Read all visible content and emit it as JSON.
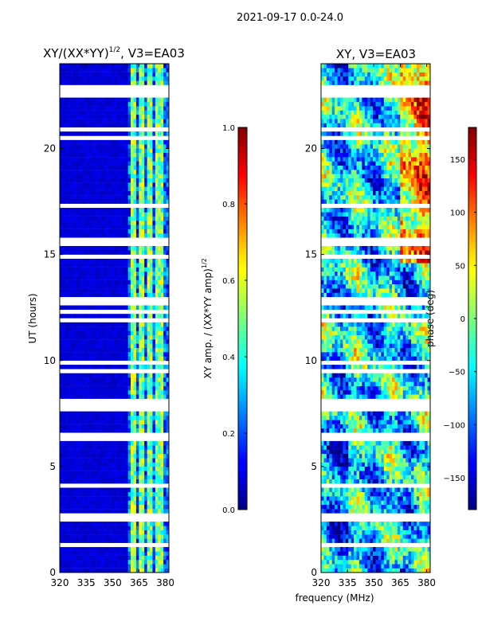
{
  "figure": {
    "suptitle": "2021-09-17 0.0-24.0",
    "shared_xlabel": "frequency (MHz)"
  },
  "chart_data": [
    {
      "type": "heatmap",
      "title_main": "XY/(XX*YY)",
      "title_sup": "1/2",
      "title_tail": ", V3=EA03",
      "ylabel": "UT (hours)",
      "xlim": [
        320,
        382
      ],
      "ylim": [
        0,
        24
      ],
      "xticks": [
        "320",
        "335",
        "350",
        "365",
        "380"
      ],
      "xtick_values": [
        320,
        335,
        350,
        365,
        380
      ],
      "yticks": [
        "0",
        "5",
        "10",
        "15",
        "20"
      ],
      "ytick_values": [
        0,
        5,
        10,
        15,
        20
      ],
      "colormap": "jet",
      "colorbar": {
        "label_main": "XY amp. / (XX*YY amp)",
        "label_sup": "1/2",
        "range": [
          0.0,
          1.0
        ],
        "ticks": [
          "0.0",
          "0.2",
          "0.4",
          "0.6",
          "0.8",
          "1.0"
        ],
        "tick_values": [
          0.0,
          0.2,
          0.4,
          0.6,
          0.8,
          1.0
        ]
      }
    },
    {
      "type": "heatmap",
      "title": "XY, V3=EA03",
      "ylabel": "",
      "xlim": [
        320,
        382
      ],
      "ylim": [
        0,
        24
      ],
      "xticks": [
        "320",
        "335",
        "350",
        "365",
        "380"
      ],
      "xtick_values": [
        320,
        335,
        350,
        365,
        380
      ],
      "yticks": [
        "0",
        "5",
        "10",
        "15",
        "20"
      ],
      "ytick_values": [
        0,
        5,
        10,
        15,
        20
      ],
      "colormap": "jet",
      "colorbar": {
        "label": "phase (deg)",
        "range": [
          -180,
          180
        ],
        "ticks": [
          "−150",
          "−100",
          "−50",
          "0",
          "50",
          "100",
          "150"
        ],
        "tick_values": [
          -150,
          -100,
          -50,
          0,
          50,
          100,
          150
        ]
      }
    }
  ]
}
